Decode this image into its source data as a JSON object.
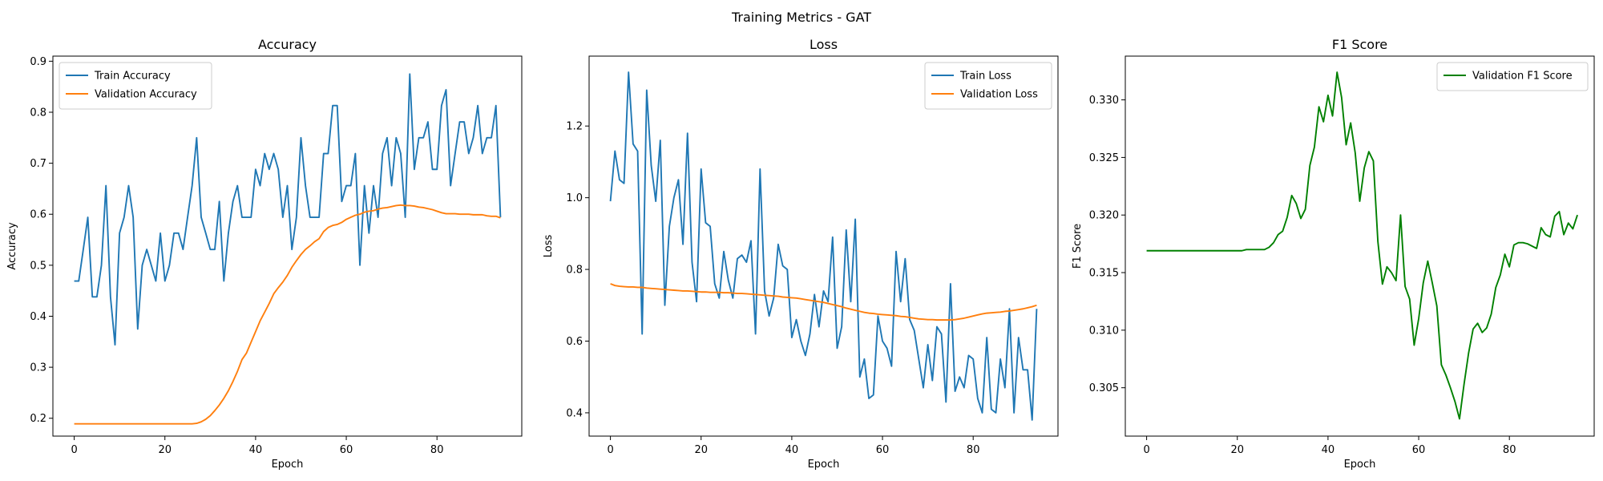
{
  "figure": {
    "suptitle": "Training Metrics - GAT"
  },
  "chart_data": [
    {
      "type": "line",
      "title": "Accuracy",
      "xlabel": "Epoch",
      "ylabel": "Accuracy",
      "xlim": [
        -4.7,
        98.7
      ],
      "ylim": [
        0.165,
        0.91
      ],
      "xticks": [
        0,
        20,
        40,
        60,
        80
      ],
      "yticks": [
        0.2,
        0.3,
        0.4,
        0.5,
        0.6,
        0.7,
        0.8,
        0.9
      ],
      "ytick_decimals": 1,
      "legend": "upper-left",
      "series": [
        {
          "name": "Train Accuracy",
          "color": "#1f77b4",
          "y": [
            0.469,
            0.469,
            0.531,
            0.594,
            0.438,
            0.438,
            0.5,
            0.656,
            0.438,
            0.344,
            0.563,
            0.594,
            0.656,
            0.594,
            0.375,
            0.5,
            0.531,
            0.5,
            0.469,
            0.563,
            0.469,
            0.5,
            0.563,
            0.563,
            0.531,
            0.594,
            0.656,
            0.75,
            0.594,
            0.563,
            0.531,
            0.531,
            0.625,
            0.469,
            0.563,
            0.625,
            0.656,
            0.594,
            0.594,
            0.594,
            0.688,
            0.656,
            0.719,
            0.688,
            0.719,
            0.688,
            0.594,
            0.656,
            0.531,
            0.594,
            0.75,
            0.656,
            0.594,
            0.594,
            0.594,
            0.719,
            0.719,
            0.813,
            0.813,
            0.625,
            0.656,
            0.656,
            0.719,
            0.5,
            0.656,
            0.563,
            0.656,
            0.594,
            0.719,
            0.75,
            0.656,
            0.75,
            0.719,
            0.594,
            0.875,
            0.688,
            0.75,
            0.75,
            0.781,
            0.688,
            0.688,
            0.813,
            0.844,
            0.656,
            0.719,
            0.781,
            0.781,
            0.719,
            0.75,
            0.813,
            0.719,
            0.75,
            0.75,
            0.813,
            0.594
          ]
        },
        {
          "name": "Validation Accuracy",
          "color": "#ff7f0e",
          "y": [
            0.189,
            0.189,
            0.189,
            0.189,
            0.189,
            0.189,
            0.189,
            0.189,
            0.189,
            0.189,
            0.189,
            0.189,
            0.189,
            0.189,
            0.189,
            0.189,
            0.189,
            0.189,
            0.189,
            0.189,
            0.189,
            0.189,
            0.189,
            0.189,
            0.189,
            0.189,
            0.189,
            0.19,
            0.193,
            0.198,
            0.205,
            0.215,
            0.226,
            0.239,
            0.254,
            0.272,
            0.292,
            0.315,
            0.328,
            0.349,
            0.37,
            0.391,
            0.408,
            0.425,
            0.444,
            0.456,
            0.467,
            0.48,
            0.496,
            0.509,
            0.521,
            0.531,
            0.538,
            0.546,
            0.552,
            0.566,
            0.574,
            0.578,
            0.58,
            0.584,
            0.59,
            0.594,
            0.598,
            0.6,
            0.604,
            0.606,
            0.607,
            0.61,
            0.612,
            0.613,
            0.615,
            0.617,
            0.618,
            0.617,
            0.617,
            0.616,
            0.614,
            0.613,
            0.611,
            0.609,
            0.606,
            0.603,
            0.601,
            0.601,
            0.601,
            0.6,
            0.6,
            0.6,
            0.599,
            0.599,
            0.599,
            0.597,
            0.596,
            0.596,
            0.593
          ]
        }
      ]
    },
    {
      "type": "line",
      "title": "Loss",
      "xlabel": "Epoch",
      "ylabel": "Loss",
      "xlim": [
        -4.7,
        98.7
      ],
      "ylim": [
        0.335,
        1.395
      ],
      "xticks": [
        0,
        20,
        40,
        60,
        80
      ],
      "yticks": [
        0.4,
        0.6,
        0.8,
        1.0,
        1.2
      ],
      "ytick_decimals": 1,
      "legend": "upper-right",
      "series": [
        {
          "name": "Train Loss",
          "color": "#1f77b4",
          "y": [
            0.99,
            1.13,
            1.05,
            1.04,
            1.35,
            1.15,
            1.13,
            0.62,
            1.3,
            1.09,
            0.99,
            1.16,
            0.7,
            0.92,
            1.0,
            1.05,
            0.87,
            1.18,
            0.82,
            0.71,
            1.08,
            0.93,
            0.92,
            0.76,
            0.72,
            0.85,
            0.77,
            0.72,
            0.83,
            0.84,
            0.82,
            0.88,
            0.62,
            1.08,
            0.74,
            0.67,
            0.72,
            0.87,
            0.81,
            0.8,
            0.61,
            0.66,
            0.6,
            0.56,
            0.62,
            0.73,
            0.64,
            0.74,
            0.71,
            0.89,
            0.58,
            0.64,
            0.91,
            0.71,
            0.94,
            0.5,
            0.55,
            0.44,
            0.45,
            0.67,
            0.6,
            0.58,
            0.53,
            0.85,
            0.71,
            0.83,
            0.66,
            0.63,
            0.55,
            0.47,
            0.59,
            0.49,
            0.64,
            0.62,
            0.43,
            0.76,
            0.46,
            0.5,
            0.47,
            0.56,
            0.55,
            0.44,
            0.4,
            0.61,
            0.41,
            0.4,
            0.55,
            0.47,
            0.69,
            0.4,
            0.61,
            0.52,
            0.52,
            0.38,
            0.69
          ]
        },
        {
          "name": "Validation Loss",
          "color": "#ff7f0e",
          "y": [
            0.76,
            0.755,
            0.753,
            0.752,
            0.751,
            0.751,
            0.75,
            0.75,
            0.748,
            0.747,
            0.746,
            0.745,
            0.744,
            0.743,
            0.742,
            0.741,
            0.74,
            0.74,
            0.739,
            0.738,
            0.737,
            0.737,
            0.736,
            0.736,
            0.736,
            0.735,
            0.735,
            0.734,
            0.733,
            0.733,
            0.732,
            0.731,
            0.73,
            0.729,
            0.728,
            0.727,
            0.726,
            0.725,
            0.723,
            0.722,
            0.721,
            0.72,
            0.718,
            0.716,
            0.714,
            0.712,
            0.71,
            0.708,
            0.705,
            0.702,
            0.699,
            0.696,
            0.692,
            0.689,
            0.686,
            0.683,
            0.68,
            0.678,
            0.677,
            0.675,
            0.674,
            0.673,
            0.672,
            0.671,
            0.669,
            0.668,
            0.666,
            0.664,
            0.662,
            0.661,
            0.66,
            0.66,
            0.659,
            0.659,
            0.659,
            0.659,
            0.66,
            0.662,
            0.664,
            0.667,
            0.67,
            0.673,
            0.676,
            0.678,
            0.679,
            0.68,
            0.681,
            0.683,
            0.684,
            0.686,
            0.688,
            0.69,
            0.693,
            0.696,
            0.7
          ]
        }
      ]
    },
    {
      "type": "line",
      "title": "F1 Score",
      "xlabel": "Epoch",
      "ylabel": "F1 Score",
      "xlim": [
        -4.7,
        98.7
      ],
      "ylim": [
        0.3008,
        0.3338
      ],
      "xticks": [
        0,
        20,
        40,
        60,
        80
      ],
      "yticks": [
        0.305,
        0.31,
        0.315,
        0.32,
        0.325,
        0.33
      ],
      "ytick_decimals": 3,
      "legend": "upper-right",
      "series": [
        {
          "name": "Validation F1 Score",
          "color": "#008000",
          "y": [
            0.3169,
            0.3169,
            0.3169,
            0.3169,
            0.3169,
            0.3169,
            0.3169,
            0.3169,
            0.3169,
            0.3169,
            0.3169,
            0.3169,
            0.3169,
            0.3169,
            0.3169,
            0.3169,
            0.3169,
            0.3169,
            0.3169,
            0.3169,
            0.3169,
            0.3169,
            0.317,
            0.317,
            0.317,
            0.317,
            0.317,
            0.3172,
            0.3176,
            0.3183,
            0.3186,
            0.3198,
            0.3217,
            0.321,
            0.3197,
            0.3205,
            0.3243,
            0.3259,
            0.3294,
            0.3281,
            0.3304,
            0.3286,
            0.3324,
            0.3302,
            0.3261,
            0.328,
            0.3254,
            0.3212,
            0.3241,
            0.3255,
            0.3247,
            0.3177,
            0.314,
            0.3155,
            0.315,
            0.3143,
            0.32,
            0.3138,
            0.3127,
            0.3087,
            0.311,
            0.3141,
            0.316,
            0.3141,
            0.3121,
            0.307,
            0.3061,
            0.305,
            0.3038,
            0.3023,
            0.3053,
            0.308,
            0.3101,
            0.3106,
            0.3098,
            0.3102,
            0.3114,
            0.3137,
            0.3148,
            0.3166,
            0.3155,
            0.3174,
            0.3176,
            0.3176,
            0.3175,
            0.3173,
            0.3171,
            0.3189,
            0.3183,
            0.3181,
            0.3199,
            0.3203,
            0.3183,
            0.3193,
            0.3188,
            0.32
          ]
        }
      ]
    }
  ]
}
